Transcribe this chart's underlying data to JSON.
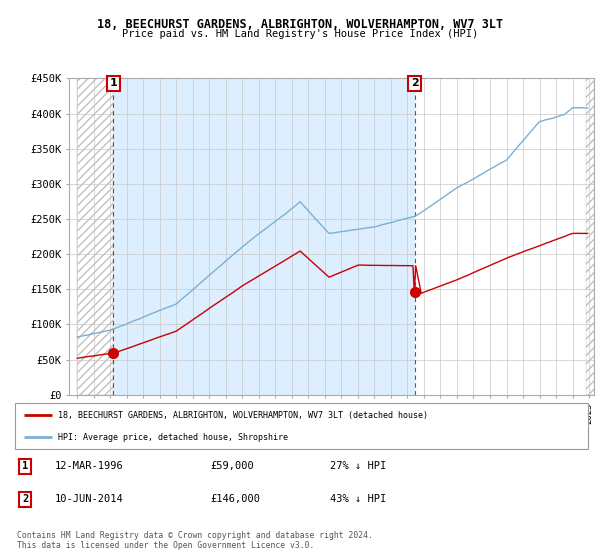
{
  "title": "18, BEECHURST GARDENS, ALBRIGHTON, WOLVERHAMPTON, WV7 3LT",
  "subtitle": "Price paid vs. HM Land Registry's House Price Index (HPI)",
  "ylim": [
    0,
    450000
  ],
  "yticks": [
    0,
    50000,
    100000,
    150000,
    200000,
    250000,
    300000,
    350000,
    400000,
    450000
  ],
  "ytick_labels": [
    "£0",
    "£50K",
    "£100K",
    "£150K",
    "£200K",
    "£250K",
    "£300K",
    "£350K",
    "£400K",
    "£450K"
  ],
  "year1": 1996.18,
  "price1": 59000,
  "year2": 2014.44,
  "price2": 146000,
  "legend_label1": "18, BEECHURST GARDENS, ALBRIGHTON, WOLVERHAMPTON, WV7 3LT (detached house)",
  "legend_label2": "HPI: Average price, detached house, Shropshire",
  "price_color": "#cc0000",
  "hpi_color": "#7ab0d4",
  "bg_owned_color": "#ddeeff",
  "footer": "Contains HM Land Registry data © Crown copyright and database right 2024.\nThis data is licensed under the Open Government Licence v3.0.",
  "start_year": 1994,
  "end_year": 2025
}
